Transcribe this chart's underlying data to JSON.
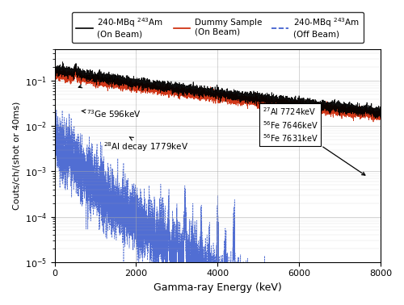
{
  "xlabel": "Gamma-ray Energy (keV)",
  "ylabel": "Couts/ch/(shot or 40ms)",
  "xlim": [
    0,
    8000
  ],
  "ylim": [
    1e-05,
    0.5
  ],
  "legend_labels": [
    "240-MBq $^{243}$Am\n(On Beam)",
    "Dummy Sample\n(On Beam)",
    "240-MBq $^{243}$Am\n(Off Beam)"
  ],
  "line_colors": [
    "black",
    "#cc2200",
    "#3355cc"
  ],
  "line_styles": [
    "-",
    "-",
    "--"
  ],
  "xticks": [
    0,
    2000,
    4000,
    6000,
    8000
  ],
  "background_color": "#ffffff",
  "grid_color": "#aaaaaa",
  "seed": 12345
}
